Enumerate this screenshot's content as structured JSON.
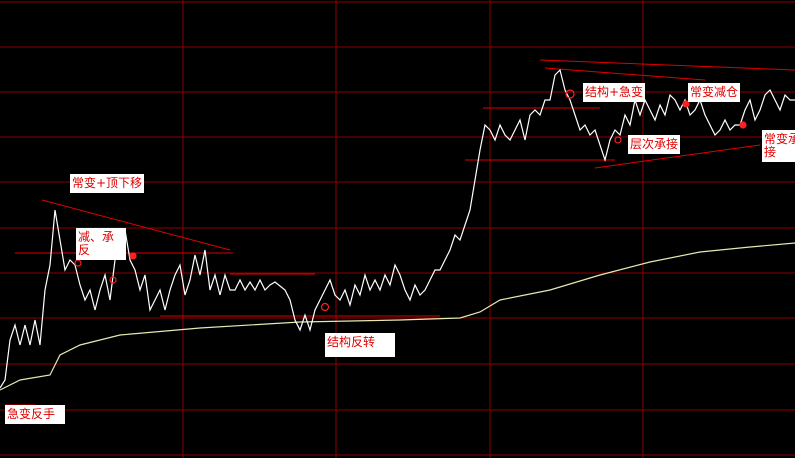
{
  "chart_data": {
    "type": "line",
    "ylim": [
      0,
      460
    ],
    "yticks": [
      5,
      50,
      96,
      142,
      187,
      232,
      278,
      323,
      368,
      413,
      458
    ],
    "xlim": [
      0,
      159
    ],
    "grid": true,
    "series": [
      {
        "color": "#ffffff",
        "values": [
          72,
          80,
          120,
          135,
          115,
          135,
          115,
          140,
          115,
          170,
          195,
          250,
          220,
          190,
          200,
          195,
          175,
          160,
          170,
          150,
          170,
          185,
          160,
          200,
          205,
          230,
          200,
          190,
          170,
          185,
          150,
          160,
          170,
          150,
          170,
          185,
          195,
          165,
          180,
          205,
          185,
          210,
          170,
          185,
          165,
          185,
          170,
          170,
          180,
          170,
          178,
          170,
          180,
          170,
          175,
          178,
          174,
          170,
          160,
          140,
          130,
          145,
          130,
          150,
          160,
          170,
          180,
          165,
          160,
          170,
          155,
          175,
          165,
          185,
          170,
          180,
          170,
          185,
          175,
          195,
          185,
          170,
          160,
          175,
          165,
          170,
          180,
          190,
          190,
          200,
          210,
          225,
          220,
          235,
          250,
          280,
          310,
          335,
          330,
          320,
          335,
          325,
          320,
          330,
          340,
          320,
          345,
          350,
          345,
          360,
          360,
          385,
          390,
          370,
          360,
          345,
          330,
          335,
          325,
          330,
          315,
          300,
          320,
          330,
          325,
          345,
          335,
          360,
          345,
          360,
          350,
          340,
          355,
          345,
          365,
          360,
          350,
          360,
          345,
          350,
          360,
          345,
          335,
          325,
          330,
          340,
          330,
          335,
          335,
          350,
          360,
          340,
          350,
          365,
          370,
          360,
          350,
          365,
          360,
          360
        ]
      },
      {
        "color": "#e8e8b0",
        "x": [
          0,
          4,
          10,
          12,
          16,
          24,
          40,
          60,
          80,
          92,
          96,
          100,
          110,
          120,
          130,
          140,
          150,
          159
        ],
        "values": [
          70,
          80,
          85,
          105,
          115,
          125,
          132,
          138,
          140,
          142,
          148,
          160,
          170,
          185,
          198,
          208,
          213,
          217
        ]
      }
    ]
  },
  "annotations": [
    "常变+顶下移",
    "减、承\n反",
    "急变反手",
    "结构反转",
    "结构+急变",
    "常变减仓",
    "层次承接",
    "常变承\n接"
  ]
}
